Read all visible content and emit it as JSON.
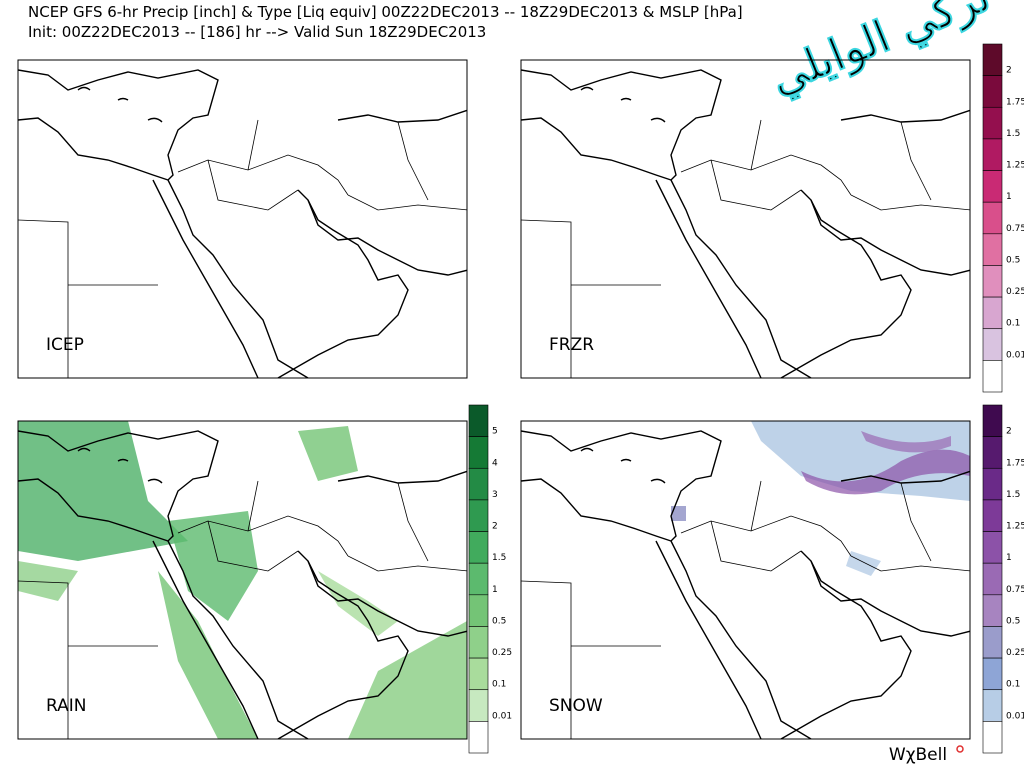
{
  "header": {
    "line1": "NCEP GFS 6-hr Precip [inch] & Type [Liq equiv] 00Z22DEC2013 -- 18Z29DEC2013 & MSLP [hPa]",
    "line2": "Init: 00Z22DEC2013 -- [186] hr --> Valid Sun 18Z29DEC2013"
  },
  "panels": [
    {
      "label": "ICEP"
    },
    {
      "label": "FRZR"
    },
    {
      "label": "RAIN"
    },
    {
      "label": "SNOW"
    }
  ],
  "colorbars": [
    {
      "ticks": [
        2,
        1.75,
        1.5,
        1.25,
        1,
        0.75,
        0.5,
        0.25,
        0.1,
        0.01
      ],
      "colors": [
        "#5e0a2a",
        "#7a0a3c",
        "#940f4e",
        "#b01a62",
        "#c92a74",
        "#d94f8b",
        "#e070a2",
        "#e08fbd",
        "#d8a6d0",
        "#d9c3e0",
        "#ffffff"
      ]
    },
    {
      "ticks": [
        5,
        4,
        3,
        2,
        1.5,
        1,
        0.5,
        0.25,
        0.1,
        0.01
      ],
      "colors": [
        "#0b5a2a",
        "#157a35",
        "#238b45",
        "#2f9a50",
        "#41ab5d",
        "#5cba6e",
        "#74c476",
        "#8fd08a",
        "#a9dc9c",
        "#c7e9c0",
        "#ffffff"
      ]
    },
    {
      "ticks": [
        2,
        1.75,
        1.5,
        1.25,
        1,
        0.75,
        0.5,
        0.25,
        0.1,
        0.01
      ],
      "colors": [
        "#3f0a4f",
        "#561a6e",
        "#6a2a88",
        "#7d3a98",
        "#8c52a8",
        "#9a6ab4",
        "#a784c0",
        "#9a9ccb",
        "#8ea5d6",
        "#b7cde6",
        "#ffffff"
      ]
    }
  ],
  "watermark": "تركي الوايلي",
  "brand": "WχBell"
}
